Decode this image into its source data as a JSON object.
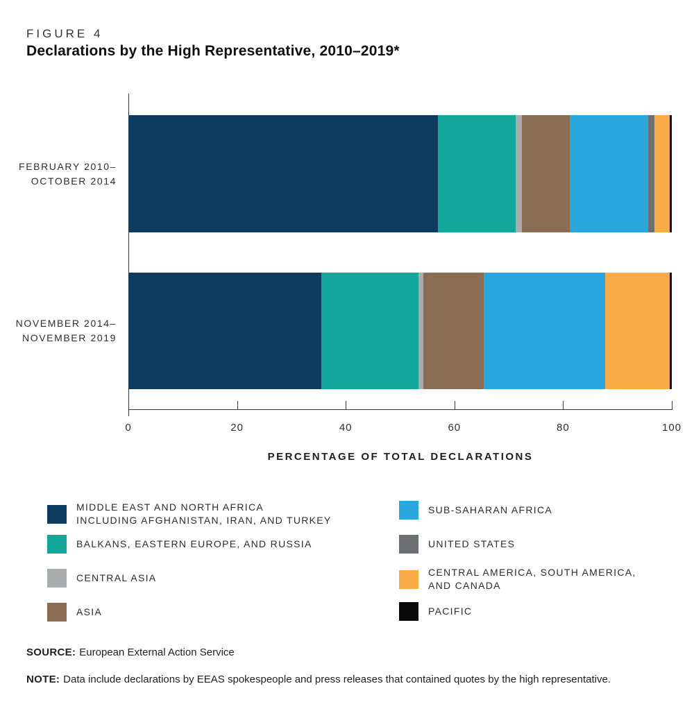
{
  "figure": {
    "label": "FIGURE 4",
    "title": "Declarations by the High Representative, 2010–2019*"
  },
  "chart_data": {
    "type": "bar",
    "orientation": "horizontal",
    "stacked": true,
    "units": "percent",
    "xlabel": "PERCENTAGE OF TOTAL DECLARATIONS",
    "xlim": [
      0,
      100
    ],
    "x_ticks": [
      "0",
      "20",
      "40",
      "60",
      "80",
      "100"
    ],
    "categories": [
      {
        "lines": [
          "FEBRUARY 2010–",
          "OCTOBER 2014"
        ]
      },
      {
        "lines": [
          "NOVEMBER 2014–",
          "NOVEMBER 2019"
        ]
      }
    ],
    "series": [
      {
        "name": "MIDDLE EAST AND NORTH AFRICA INCLUDING AFGHANISTAN, IRAN, AND TURKEY",
        "color": "#0d3a5f",
        "values": [
          56.9,
          35.4
        ]
      },
      {
        "name": "BALKANS, EASTERN EUROPE, AND RUSSIA",
        "color": "#13a69b",
        "values": [
          14.3,
          17.9
        ]
      },
      {
        "name": "CENTRAL ASIA",
        "color": "#aaacae",
        "values": [
          1.2,
          0.9
        ]
      },
      {
        "name": "ASIA",
        "color": "#8a6c53",
        "values": [
          8.8,
          11.1
        ]
      },
      {
        "name": "SUB-SAHARAN AFRICA",
        "color": "#29a8e0",
        "values": [
          14.4,
          22.4
        ]
      },
      {
        "name": "UNITED STATES",
        "color": "#6e6f72",
        "values": [
          1.2,
          0
        ]
      },
      {
        "name": "CENTRAL AMERICA, SOUTH AMERICA, AND CANADA",
        "color": "#f9ac46",
        "values": [
          2.8,
          11.9
        ]
      },
      {
        "name": "PACIFIC",
        "color": "#0a0a0a",
        "values": [
          0.4,
          0.4
        ]
      }
    ],
    "legend_position": "bottom-two-columns",
    "grid": false
  },
  "legend": {
    "left_column": [
      {
        "color": "#0d3a5f",
        "lines": [
          "MIDDLE EAST AND NORTH AFRICA",
          "INCLUDING AFGHANISTAN, IRAN, AND TURKEY"
        ]
      },
      {
        "color": "#13a69b",
        "lines": [
          "BALKANS, EASTERN EUROPE, AND RUSSIA"
        ]
      },
      {
        "color": "#aaacae",
        "lines": [
          "CENTRAL ASIA"
        ]
      },
      {
        "color": "#8a6c53",
        "lines": [
          "ASIA"
        ]
      }
    ],
    "right_column": [
      {
        "color": "#29a8e0",
        "lines": [
          "SUB-SAHARAN AFRICA"
        ]
      },
      {
        "color": "#6e6f72",
        "lines": [
          "UNITED STATES"
        ]
      },
      {
        "color": "#f9ac46",
        "lines": [
          "CENTRAL AMERICA, SOUTH AMERICA,",
          "AND CANADA"
        ]
      },
      {
        "color": "#0a0a0a",
        "lines": [
          "PACIFIC"
        ]
      }
    ]
  },
  "source": {
    "label": "SOURCE:",
    "text": "European External Action Service"
  },
  "note": {
    "label": "NOTE:",
    "text": "Data include declarations by EEAS spokespeople and press releases that contained quotes by the high representative."
  }
}
